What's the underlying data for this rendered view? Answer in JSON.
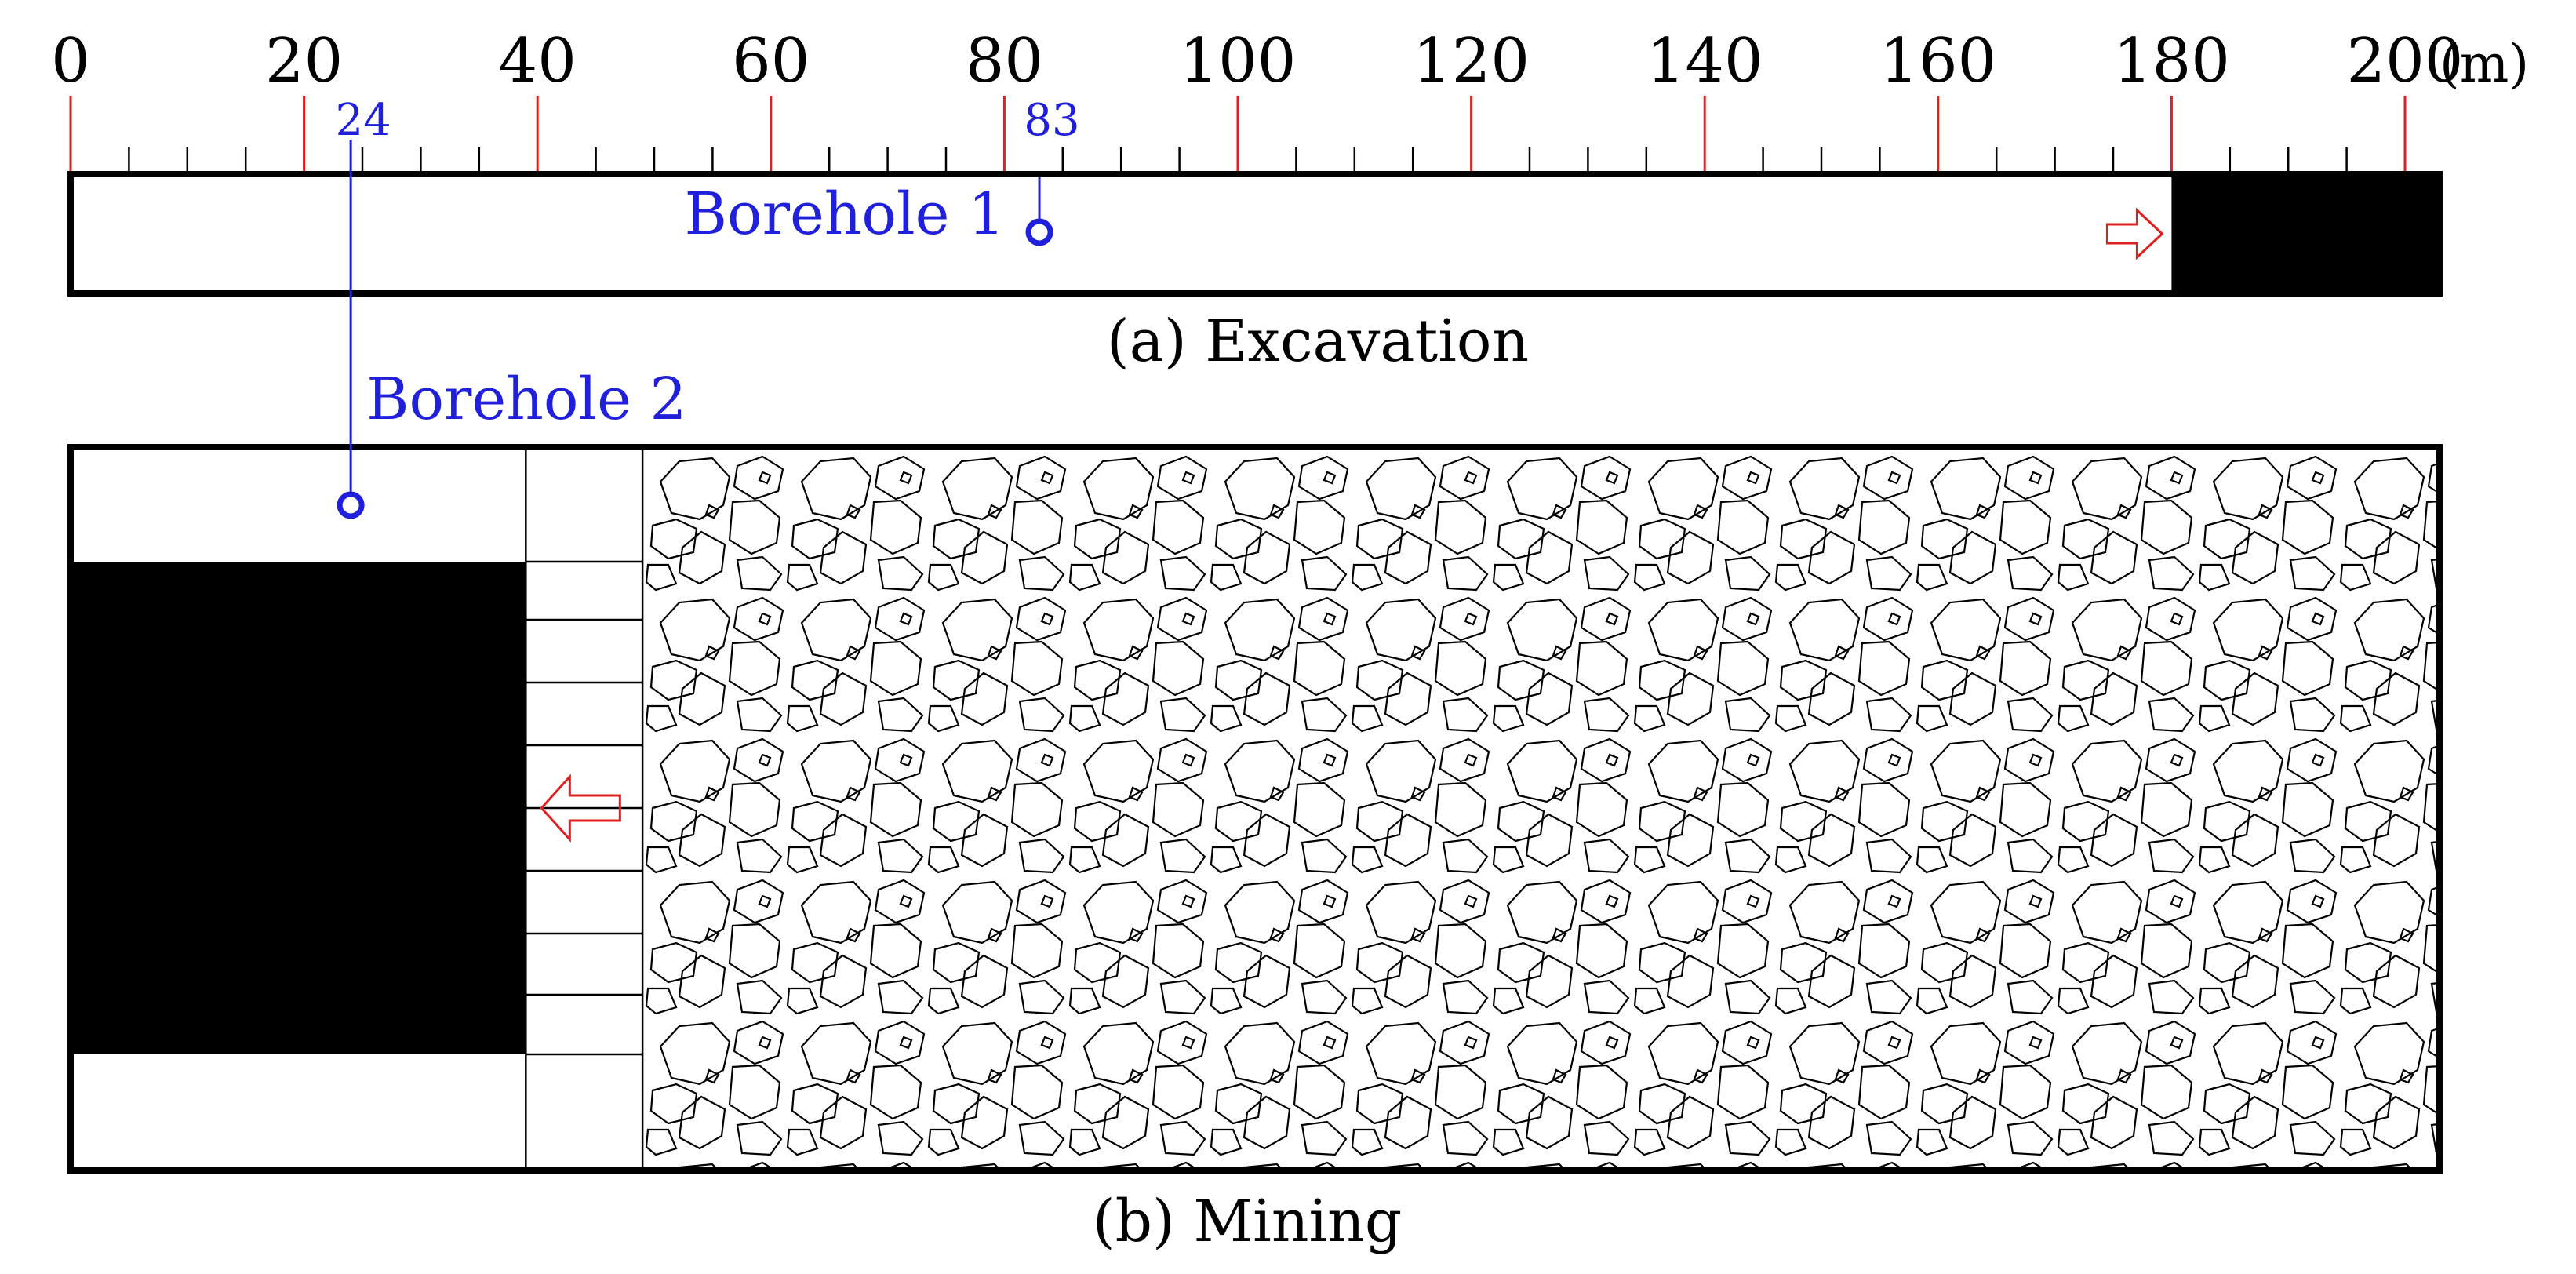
{
  "scale": {
    "major_ticks": [
      0,
      20,
      40,
      60,
      80,
      100,
      120,
      140,
      160,
      180,
      200
    ],
    "minor_step": 5,
    "unit": "(m)",
    "colors": {
      "major_tick": "#e02020",
      "minor_tick": "#000000"
    }
  },
  "markers": [
    {
      "value": 24,
      "label": "24"
    },
    {
      "value": 83,
      "label": "83"
    }
  ],
  "boreholes": [
    {
      "label": "Borehole 1",
      "position_m": 83,
      "panel": "excavation"
    },
    {
      "label": "Borehole 2",
      "position_m": 24,
      "panel": "mining"
    }
  ],
  "panels": {
    "excavation": {
      "caption": "(a)  Excavation",
      "face_m": 180,
      "advance_direction": "right"
    },
    "mining": {
      "caption": "(b)  Mining",
      "face_m": 39,
      "support_end_m": 49,
      "advance_direction": "left"
    }
  },
  "colors": {
    "borehole": "#1f1fdc",
    "arrow": "#e02020",
    "coal": "#000000",
    "outline": "#000000"
  }
}
